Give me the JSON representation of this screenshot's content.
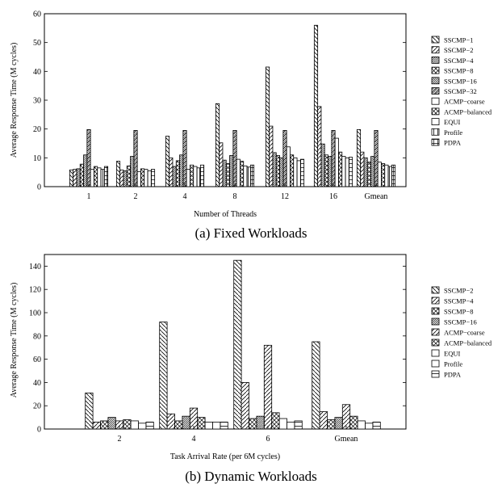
{
  "captions": {
    "a": "(a) Fixed Workloads",
    "b": "(b) Dynamic Workloads"
  },
  "chart_data": [
    {
      "type": "bar",
      "xlabel": "Number of Threads",
      "ylabel": "Average Response Time (M cycles)",
      "ylim": [
        0,
        60
      ],
      "yticks": [
        "0",
        "10",
        "20",
        "30",
        "40",
        "50",
        "60"
      ],
      "categories": [
        "1",
        "2",
        "4",
        "8",
        "12",
        "16",
        "Gmean"
      ],
      "legend_position": "right",
      "series": [
        {
          "name": "SSCMP−1",
          "values": [
            5.8,
            8.8,
            17.5,
            28.8,
            41.5,
            56,
            19.8
          ]
        },
        {
          "name": "SSCMP−2",
          "values": [
            6.0,
            5.8,
            10.0,
            15.2,
            21.0,
            27.8,
            12.0
          ]
        },
        {
          "name": "SSCMP−4",
          "values": [
            6.2,
            5.5,
            7.0,
            9.2,
            11.8,
            14.8,
            10.0
          ]
        },
        {
          "name": "SSCMP−8",
          "values": [
            7.8,
            7.2,
            9.0,
            8.0,
            10.8,
            11.0,
            8.5
          ]
        },
        {
          "name": "SSCMP−16",
          "values": [
            11.0,
            10.5,
            11.0,
            10.8,
            10.0,
            10.5,
            10.5
          ]
        },
        {
          "name": "SSCMP−32",
          "values": [
            19.8,
            19.5,
            19.5,
            19.5,
            19.5,
            19.5,
            19.5
          ]
        },
        {
          "name": "ACMP−coarse",
          "values": [
            6.0,
            5.2,
            6.0,
            9.5,
            13.8,
            16.8,
            8.5
          ]
        },
        {
          "name": "ACMP−balanced",
          "values": [
            7.0,
            6.2,
            7.5,
            8.8,
            11.0,
            12.0,
            8.0
          ]
        },
        {
          "name": "EQUI",
          "values": [
            6.5,
            6.0,
            7.0,
            7.2,
            10.0,
            10.5,
            7.5
          ]
        },
        {
          "name": "Profile",
          "values": [
            6.0,
            5.5,
            6.5,
            6.8,
            9.0,
            10.0,
            7.0
          ]
        },
        {
          "name": "PDPA",
          "values": [
            7.0,
            6.0,
            7.5,
            7.5,
            9.5,
            10.2,
            7.5
          ]
        }
      ]
    },
    {
      "type": "bar",
      "xlabel": "Task Arrival Rate (per 6M cycles)",
      "ylabel": "Average Response Time (M cycles)",
      "ylim": [
        0,
        150
      ],
      "yticks": [
        "0",
        "20",
        "40",
        "60",
        "80",
        "100",
        "120",
        "140"
      ],
      "categories": [
        "2",
        "4",
        "6",
        "Gmean"
      ],
      "legend_position": "right",
      "series": [
        {
          "name": "SSCMP−2",
          "values": [
            31,
            92,
            145,
            75
          ]
        },
        {
          "name": "SSCMP−4",
          "values": [
            6,
            13,
            40,
            15
          ]
        },
        {
          "name": "SSCMP−8",
          "values": [
            7,
            7,
            9,
            8
          ]
        },
        {
          "name": "SSCMP−16",
          "values": [
            10,
            11,
            11,
            10
          ]
        },
        {
          "name": "ACMP−coarse",
          "values": [
            7,
            18,
            72,
            21
          ]
        },
        {
          "name": "ACMP−balanced",
          "values": [
            8,
            10,
            14,
            11
          ]
        },
        {
          "name": "EQUI",
          "values": [
            7,
            6,
            9,
            7
          ]
        },
        {
          "name": "Profile",
          "values": [
            5,
            6,
            6,
            5
          ]
        },
        {
          "name": "PDPA",
          "values": [
            6,
            6,
            7,
            6
          ]
        }
      ]
    }
  ]
}
